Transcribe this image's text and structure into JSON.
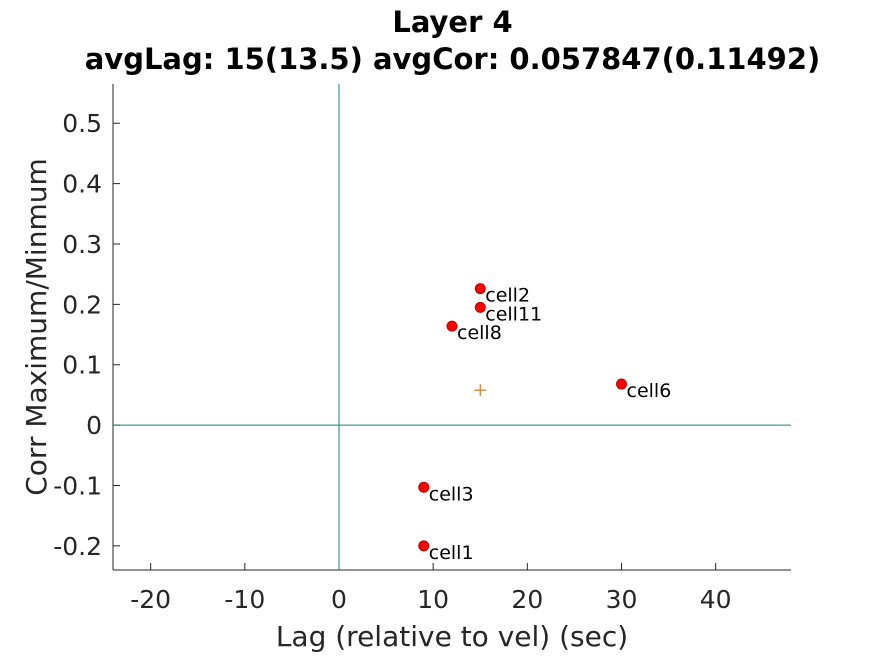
{
  "chart_data": {
    "type": "scatter",
    "title": "Layer 4",
    "subtitle": "avgLag: 15(13.5) avgCor: 0.057847(0.11492)",
    "xlabel": "Lag (relative to vel) (sec)",
    "ylabel": "Corr Maximum/Minmum",
    "xlim": [
      -24,
      48
    ],
    "ylim": [
      -0.24,
      0.565
    ],
    "xticks": [
      -20,
      -10,
      0,
      10,
      20,
      30,
      40
    ],
    "xtick_labels": [
      "-20",
      "-10",
      "0",
      "10",
      "20",
      "30",
      "40"
    ],
    "yticks": [
      -0.2,
      -0.1,
      0,
      0.1,
      0.2,
      0.3,
      0.4,
      0.5
    ],
    "ytick_labels": [
      "-0.2",
      "-0.1",
      "0",
      "0.1",
      "0.2",
      "0.3",
      "0.4",
      "0.5"
    ],
    "grid": false,
    "reference_lines": {
      "x": 0,
      "y": 0,
      "color": "#1a7f7f"
    },
    "points": [
      {
        "label": "cell2",
        "x": 15,
        "y": 0.226
      },
      {
        "label": "cell11",
        "x": 15,
        "y": 0.195
      },
      {
        "label": "cell8",
        "x": 12,
        "y": 0.164
      },
      {
        "label": "cell6",
        "x": 30,
        "y": 0.068
      },
      {
        "label": "cell3",
        "x": 9,
        "y": -0.103
      },
      {
        "label": "cell1",
        "x": 9,
        "y": -0.2
      }
    ],
    "mean_marker": {
      "x": 15,
      "y": 0.057847,
      "symbol": "+",
      "color": "#c87828"
    },
    "point_color": "#ff0000"
  }
}
